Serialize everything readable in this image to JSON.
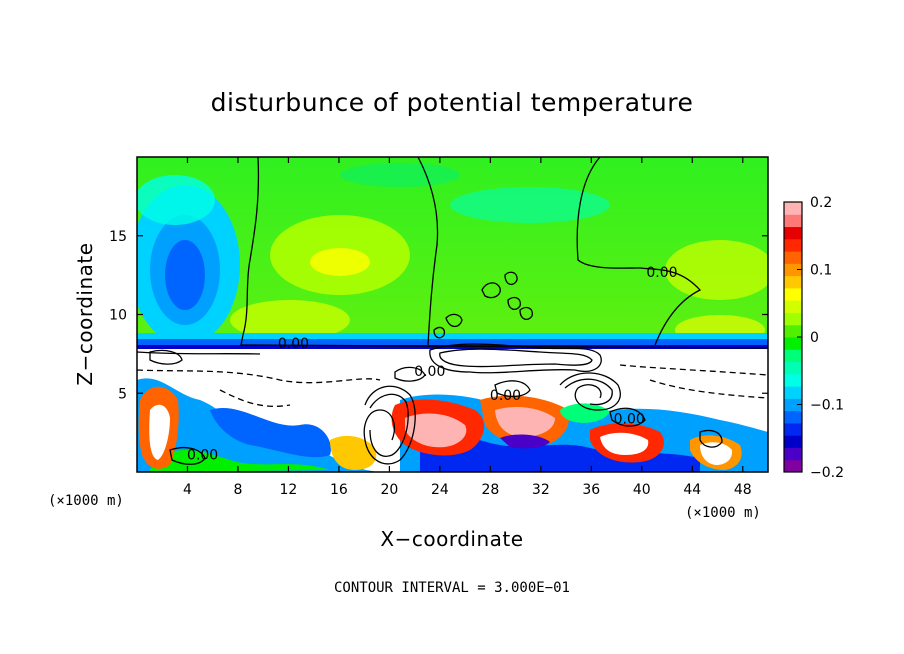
{
  "chart_data": {
    "type": "heatmap",
    "title": "disturbunce of potential temperature",
    "xlabel": "X−coordinate",
    "ylabel": "Z−coordinate",
    "x_unit": "(×1000 m)",
    "xlim": [
      0,
      50
    ],
    "ylim": [
      0,
      20
    ],
    "x_ticks": [
      4,
      8,
      12,
      16,
      20,
      24,
      28,
      32,
      36,
      40,
      44,
      48
    ],
    "y_ticks": [
      5,
      10,
      15
    ],
    "contour_note": "CONTOUR INTERVAL = 3.000E−01",
    "contour_labels": [
      {
        "text": "0.00",
        "x": 41.6,
        "z": 12.7
      },
      {
        "text": "0.00",
        "x": 12.4,
        "z": 8.2
      },
      {
        "text": "0.00",
        "x": 5.2,
        "z": 1.1
      },
      {
        "text": "0.00",
        "x": 29.2,
        "z": 4.9
      },
      {
        "text": "0.00",
        "x": 39.0,
        "z": 3.4
      },
      {
        "text": "0.00",
        "x": 23.2,
        "z": 6.4
      }
    ],
    "colorbar": {
      "min": -0.2,
      "max": 0.2,
      "ticks": [
        {
          "v": 0.2,
          "t": "0.2"
        },
        {
          "v": 0.1,
          "t": "0.1"
        },
        {
          "v": 0,
          "t": "0"
        },
        {
          "v": -0.1,
          "t": "−0.1"
        },
        {
          "v": -0.2,
          "t": "−0.2"
        }
      ],
      "colors": [
        "#8000a0",
        "#4b00c8",
        "#0000c8",
        "#0028f0",
        "#0064ff",
        "#00a0ff",
        "#00d2ff",
        "#00ffe6",
        "#00ffb4",
        "#00ff78",
        "#00f000",
        "#50f000",
        "#a0ff00",
        "#d2ff00",
        "#ffff00",
        "#ffc800",
        "#ff9600",
        "#ff6400",
        "#ff2800",
        "#e60000",
        "#ff7878",
        "#ffb4b4"
      ]
    },
    "field_regions": [
      {
        "desc": "upper layer",
        "z_range": [
          8,
          20
        ],
        "value": 0.03
      },
      {
        "desc": "blue pool left upper",
        "x": 5,
        "z": 13.5,
        "value": -0.12
      },
      {
        "desc": "blue band",
        "z": 7.8,
        "value": -0.15
      },
      {
        "desc": "lower turbulent layer",
        "z_range": [
          0,
          7.5
        ],
        "value": 0.0
      }
    ]
  }
}
